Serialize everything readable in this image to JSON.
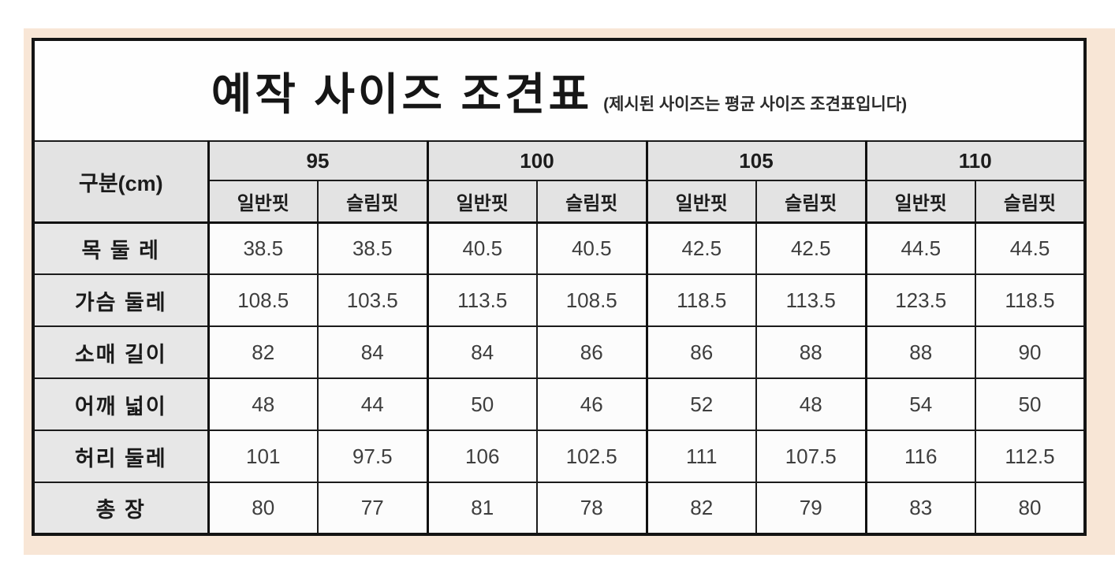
{
  "page": {
    "background_color": "#ffffff",
    "panel_color": "#f8e6d6",
    "header_fill_color": "#e3e3e3",
    "border_color": "#141414"
  },
  "table": {
    "title": "예작 사이즈 조견표",
    "subtitle": "(제시된 사이즈는 평균 사이즈 조견표입니다)",
    "corner_label": "구분(cm)",
    "size_groups": [
      "95",
      "100",
      "105",
      "110"
    ],
    "fit_labels": [
      "일반핏",
      "슬림핏"
    ],
    "rows": [
      {
        "label": "목 둘 레",
        "values": [
          "38.5",
          "38.5",
          "40.5",
          "40.5",
          "42.5",
          "42.5",
          "44.5",
          "44.5"
        ]
      },
      {
        "label": "가슴 둘레",
        "values": [
          "108.5",
          "103.5",
          "113.5",
          "108.5",
          "118.5",
          "113.5",
          "123.5",
          "118.5"
        ]
      },
      {
        "label": "소매 길이",
        "values": [
          "82",
          "84",
          "84",
          "86",
          "86",
          "88",
          "88",
          "90"
        ]
      },
      {
        "label": "어깨 넓이",
        "values": [
          "48",
          "44",
          "50",
          "46",
          "52",
          "48",
          "54",
          "50"
        ]
      },
      {
        "label": "허리 둘레",
        "values": [
          "101",
          "97.5",
          "106",
          "102.5",
          "111",
          "107.5",
          "116",
          "112.5"
        ]
      },
      {
        "label": "총 장",
        "values": [
          "80",
          "77",
          "81",
          "78",
          "82",
          "79",
          "83",
          "80"
        ]
      }
    ]
  }
}
